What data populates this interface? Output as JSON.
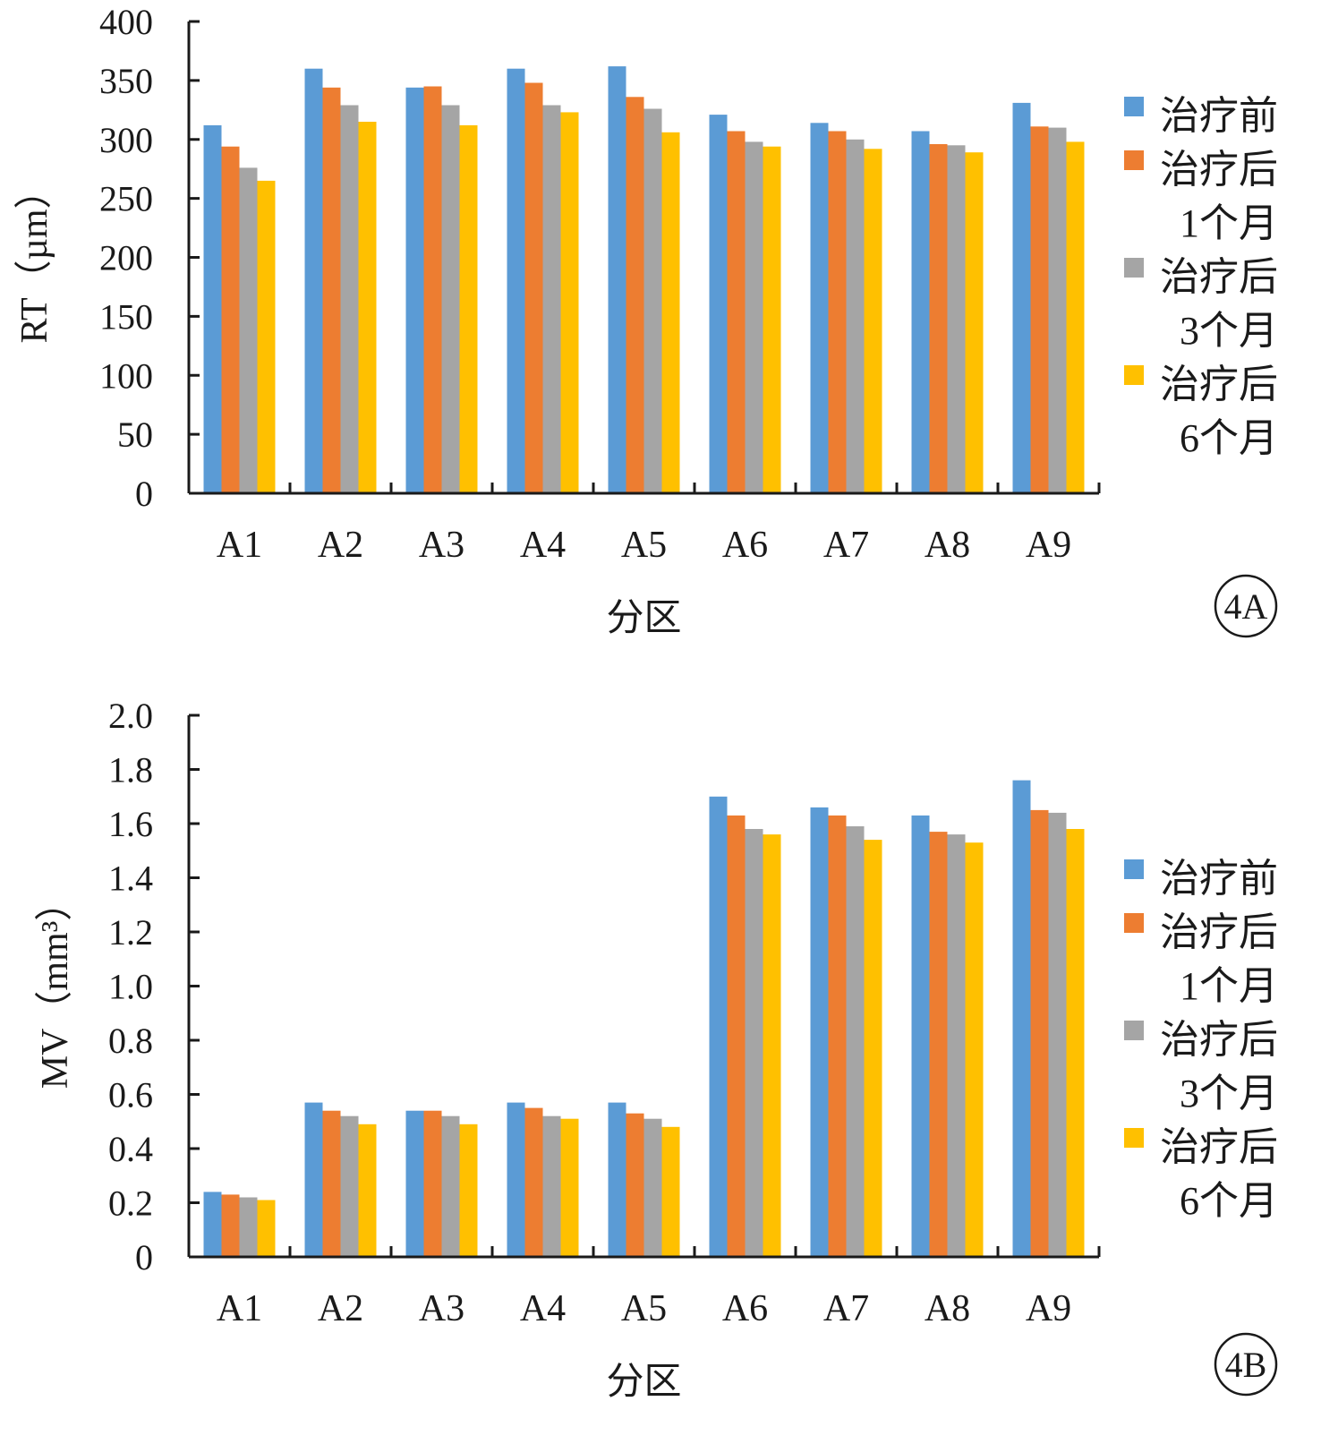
{
  "chart_data": [
    {
      "type": "bar",
      "panel_label": "4A",
      "categories": [
        "A1",
        "A2",
        "A3",
        "A4",
        "A5",
        "A6",
        "A7",
        "A8",
        "A9"
      ],
      "series": [
        {
          "name": "治疗前",
          "values": [
            312,
            360,
            344,
            360,
            362,
            321,
            314,
            307,
            331
          ]
        },
        {
          "name": "治疗后1个月",
          "values": [
            294,
            344,
            345,
            348,
            336,
            307,
            307,
            296,
            311
          ]
        },
        {
          "name": "治疗后3个月",
          "values": [
            276,
            329,
            329,
            329,
            326,
            298,
            300,
            295,
            310
          ]
        },
        {
          "name": "治疗后6个月",
          "values": [
            265,
            315,
            312,
            323,
            306,
            294,
            292,
            289,
            298
          ]
        }
      ],
      "legend_lines": [
        [
          "治疗前"
        ],
        [
          "治疗后",
          "1个月"
        ],
        [
          "治疗后",
          "3个月"
        ],
        [
          "治疗后",
          "6个月"
        ]
      ],
      "yticks": [
        "0",
        "50",
        "100",
        "150",
        "200",
        "250",
        "300",
        "350",
        "400"
      ],
      "ylim": [
        0,
        400
      ],
      "xlabel": "分区",
      "ylabel": "RT（µm）",
      "grid": false,
      "legend_position": "right"
    },
    {
      "type": "bar",
      "panel_label": "4B",
      "categories": [
        "A1",
        "A2",
        "A3",
        "A4",
        "A5",
        "A6",
        "A7",
        "A8",
        "A9"
      ],
      "series": [
        {
          "name": "治疗前",
          "values": [
            0.24,
            0.57,
            0.54,
            0.57,
            0.57,
            1.7,
            1.66,
            1.63,
            1.76
          ]
        },
        {
          "name": "治疗后1个月",
          "values": [
            0.23,
            0.54,
            0.54,
            0.55,
            0.53,
            1.63,
            1.63,
            1.57,
            1.65
          ]
        },
        {
          "name": "治疗后3个月",
          "values": [
            0.22,
            0.52,
            0.52,
            0.52,
            0.51,
            1.58,
            1.59,
            1.56,
            1.64
          ]
        },
        {
          "name": "治疗后6个月",
          "values": [
            0.21,
            0.49,
            0.49,
            0.51,
            0.48,
            1.56,
            1.54,
            1.53,
            1.58
          ]
        }
      ],
      "legend_lines": [
        [
          "治疗前"
        ],
        [
          "治疗后",
          "1个月"
        ],
        [
          "治疗后",
          "3个月"
        ],
        [
          "治疗后",
          "6个月"
        ]
      ],
      "yticks": [
        "0",
        "0.2",
        "0.4",
        "0.6",
        "0.8",
        "1.0",
        "1.2",
        "1.4",
        "1.6",
        "1.8",
        "2.0"
      ],
      "ylim": [
        0,
        2.0
      ],
      "xlabel": "分区",
      "ylabel": "MV（mm³）",
      "grid": false,
      "legend_position": "right"
    }
  ],
  "colors": [
    "#5B9BD5",
    "#ED7D31",
    "#A5A5A5",
    "#FFC000"
  ]
}
